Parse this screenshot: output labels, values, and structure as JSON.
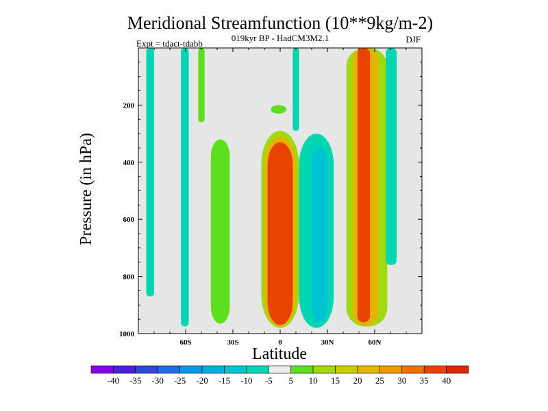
{
  "chart_data": {
    "type": "heatmap",
    "title": "Meridional Streamfunction (10**9kg/m-2)",
    "subtitle": "019kyr BP - HadCM3M2.1",
    "experiment": "Expt = tdact-tdabb",
    "season": "DJF",
    "xlabel": "Latitude",
    "ylabel": "Pressure (in hPa)",
    "xlim": [
      -90,
      90
    ],
    "ylim": [
      1000,
      0
    ],
    "x_ticks": [
      {
        "value": -60,
        "label": "60S"
      },
      {
        "value": -30,
        "label": "30S"
      },
      {
        "value": 0,
        "label": "0"
      },
      {
        "value": 30,
        "label": "30N"
      },
      {
        "value": 60,
        "label": "60N"
      }
    ],
    "y_ticks": [
      {
        "value": 200,
        "label": "200"
      },
      {
        "value": 400,
        "label": "400"
      },
      {
        "value": 600,
        "label": "600"
      },
      {
        "value": 800,
        "label": "800"
      },
      {
        "value": 1000,
        "label": "1000"
      }
    ],
    "missing_color": "#e6e6e6",
    "levels": [
      -40,
      -35,
      -30,
      -25,
      -20,
      -15,
      -10,
      -5,
      5,
      10,
      15,
      20,
      25,
      30,
      35,
      40
    ],
    "colors": [
      "#8a00e6",
      "#4a1fd6",
      "#2f48d8",
      "#1f6ee8",
      "#0e96e6",
      "#00aedc",
      "#00c4d4",
      "#00d6b2",
      "#ebebeb",
      "#5ce01e",
      "#a0d812",
      "#c9cc00",
      "#e4b400",
      "#f09800",
      "#f07000",
      "#e84400",
      "#dc2800"
    ],
    "features": [
      {
        "lat_min": -85,
        "lat_max": -80,
        "p_top": 0,
        "p_bot": 870,
        "value": -7,
        "shape": "rect"
      },
      {
        "lat_min": -63,
        "lat_max": -58,
        "p_top": 0,
        "p_bot": 975,
        "value": -7,
        "shape": "rect"
      },
      {
        "lat_min": -52,
        "lat_max": -48,
        "p_top": 0,
        "p_bot": 260,
        "value": 8,
        "shape": "rect"
      },
      {
        "lat_min": -44,
        "lat_max": -32,
        "p_top": 320,
        "p_bot": 965,
        "value": 8,
        "shape": "ellipse"
      },
      {
        "lat_min": -12,
        "lat_max": 12,
        "p_top": 290,
        "p_bot": 980,
        "value": 12,
        "shape": "ellipse"
      },
      {
        "lat_min": -10,
        "lat_max": 10,
        "p_top": 310,
        "p_bot": 975,
        "value": 22,
        "shape": "ellipse"
      },
      {
        "lat_min": -8,
        "lat_max": 8,
        "p_top": 330,
        "p_bot": 970,
        "value": 38,
        "shape": "ellipse"
      },
      {
        "lat_min": -6,
        "lat_max": 4,
        "p_top": 200,
        "p_bot": 230,
        "value": 8,
        "shape": "ellipse"
      },
      {
        "lat_min": 8,
        "lat_max": 12,
        "p_top": 0,
        "p_bot": 290,
        "value": -7,
        "shape": "rect"
      },
      {
        "lat_min": 12,
        "lat_max": 34,
        "p_top": 300,
        "p_bot": 980,
        "value": -7,
        "shape": "ellipse"
      },
      {
        "lat_min": 20,
        "lat_max": 30,
        "p_top": 350,
        "p_bot": 960,
        "value": -12,
        "shape": "ellipse"
      },
      {
        "lat_min": 42,
        "lat_max": 68,
        "p_top": 0,
        "p_bot": 975,
        "value": 12,
        "shape": "rect"
      },
      {
        "lat_min": 46,
        "lat_max": 62,
        "p_top": 0,
        "p_bot": 970,
        "value": 22,
        "shape": "rect"
      },
      {
        "lat_min": 49,
        "lat_max": 57,
        "p_top": 0,
        "p_bot": 960,
        "value": 38,
        "shape": "rect"
      },
      {
        "lat_min": 67,
        "lat_max": 74,
        "p_top": 0,
        "p_bot": 760,
        "value": -7,
        "shape": "rect"
      }
    ]
  }
}
